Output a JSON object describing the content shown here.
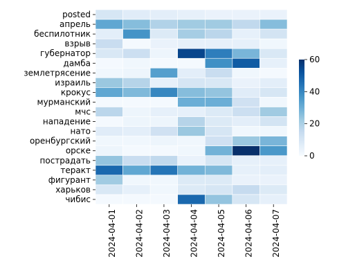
{
  "chart_data": {
    "type": "heatmap",
    "title": "",
    "xlabel": "",
    "ylabel": "",
    "rows": [
      "posted",
      "апрель",
      "беспилотник",
      "взрыв",
      "губернатор",
      "дамба",
      "землетрясение",
      "израиль",
      "крокус",
      "мурманский",
      "мчс",
      "нападение",
      "нато",
      "оренбургский",
      "орске",
      "пострадать",
      "теракт",
      "фигурант",
      "харьков",
      "чибис"
    ],
    "columns": [
      "2024-04-01",
      "2024-04-02",
      "2024-04-03",
      "2024-04-04",
      "2024-04-05",
      "2024-04-06",
      "2024-04-07"
    ],
    "values": [
      [
        10,
        7,
        6,
        5,
        4,
        4,
        4
      ],
      [
        32,
        26,
        19,
        22,
        22,
        16,
        26
      ],
      [
        6,
        37,
        8,
        21,
        17,
        5,
        11
      ],
      [
        14,
        1,
        4,
        5,
        5,
        5,
        2
      ],
      [
        9,
        13,
        3,
        55,
        42,
        28,
        9
      ],
      [
        1,
        2,
        1,
        1,
        38,
        50,
        5
      ],
      [
        2,
        3,
        34,
        6,
        14,
        2,
        1
      ],
      [
        23,
        18,
        5,
        10,
        9,
        4,
        6
      ],
      [
        32,
        27,
        40,
        26,
        24,
        7,
        10
      ],
      [
        1,
        1,
        1,
        30,
        30,
        12,
        2
      ],
      [
        17,
        3,
        5,
        5,
        8,
        13,
        22
      ],
      [
        1,
        3,
        3,
        18,
        8,
        6,
        11
      ],
      [
        7,
        6,
        12,
        23,
        10,
        2,
        2
      ],
      [
        2,
        2,
        3,
        2,
        12,
        23,
        28
      ],
      [
        3,
        1,
        1,
        2,
        29,
        60,
        36
      ],
      [
        24,
        14,
        16,
        4,
        10,
        5,
        5
      ],
      [
        47,
        32,
        44,
        29,
        27,
        5,
        6
      ],
      [
        22,
        2,
        2,
        8,
        8,
        4,
        4
      ],
      [
        9,
        5,
        2,
        8,
        10,
        15,
        8
      ],
      [
        1,
        1,
        1,
        47,
        24,
        10,
        5
      ]
    ],
    "vmin": 0,
    "vmax": 60,
    "colormap": "Blues",
    "colorbar_ticks": [
      0,
      20,
      40,
      60
    ],
    "colors": {
      "low": "#f7fbff",
      "high": "#08306b"
    }
  }
}
